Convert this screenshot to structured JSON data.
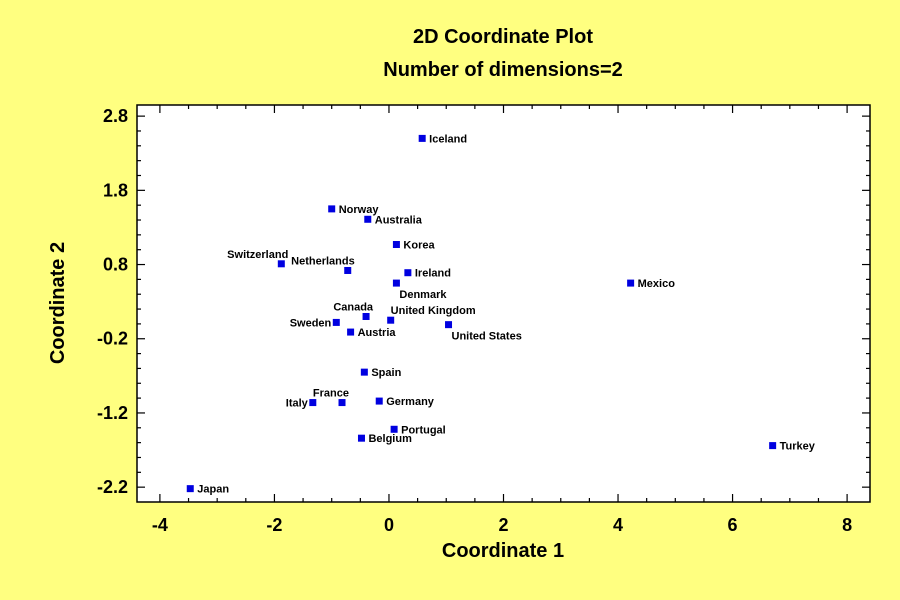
{
  "chart_data": {
    "type": "scatter",
    "title": "2D Coordinate Plot",
    "subtitle": "Number of dimensions=2",
    "xlabel": "Coordinate 1",
    "ylabel": "Coordinate 2",
    "xlim": [
      -4.4,
      8.4
    ],
    "ylim": [
      -2.4,
      2.95
    ],
    "xticks": [
      -4,
      -2,
      0,
      2,
      4,
      6,
      8
    ],
    "yticks": [
      2.8,
      1.8,
      0.8,
      -0.2,
      -1.2,
      -2.2
    ],
    "xtick_labels": [
      "-4",
      "-2",
      "0",
      "2",
      "4",
      "6",
      "8"
    ],
    "ytick_labels": [
      "2.8",
      "1.8",
      "0.8",
      "-0.2",
      "-1.2",
      "-2.2"
    ],
    "grid": false,
    "marker_color": "#0000E0",
    "plot_background": "#FFFFFF",
    "page_background": "#FFFF80",
    "points": [
      {
        "label": "Iceland",
        "x": 0.58,
        "y": 2.5,
        "pos": "right"
      },
      {
        "label": "Norway",
        "x": -1.0,
        "y": 1.55,
        "pos": "right"
      },
      {
        "label": "Australia",
        "x": -0.37,
        "y": 1.41,
        "pos": "right"
      },
      {
        "label": "Korea",
        "x": 0.13,
        "y": 1.07,
        "pos": "right"
      },
      {
        "label": "Switzerland",
        "x": -1.88,
        "y": 0.81,
        "pos": "upleft"
      },
      {
        "label": "Netherlands",
        "x": -0.72,
        "y": 0.72,
        "pos": "upleft"
      },
      {
        "label": "Ireland",
        "x": 0.33,
        "y": 0.69,
        "pos": "right"
      },
      {
        "label": "Denmark",
        "x": 0.13,
        "y": 0.55,
        "pos": "belowright"
      },
      {
        "label": "Mexico",
        "x": 4.22,
        "y": 0.55,
        "pos": "right"
      },
      {
        "label": "Canada",
        "x": -0.4,
        "y": 0.1,
        "pos": "upleft"
      },
      {
        "label": "United Kingdom",
        "x": 0.03,
        "y": 0.05,
        "pos": "upright"
      },
      {
        "label": "Sweden",
        "x": -0.92,
        "y": 0.02,
        "pos": "left"
      },
      {
        "label": "United States",
        "x": 1.04,
        "y": -0.01,
        "pos": "belowright"
      },
      {
        "label": "Austria",
        "x": -0.67,
        "y": -0.11,
        "pos": "right"
      },
      {
        "label": "Spain",
        "x": -0.43,
        "y": -0.65,
        "pos": "right"
      },
      {
        "label": "France",
        "x": -0.82,
        "y": -1.06,
        "pos": "upleft"
      },
      {
        "label": "Italy",
        "x": -1.33,
        "y": -1.06,
        "pos": "left"
      },
      {
        "label": "Germany",
        "x": -0.17,
        "y": -1.04,
        "pos": "right"
      },
      {
        "label": "Portugal",
        "x": 0.09,
        "y": -1.42,
        "pos": "right"
      },
      {
        "label": "Belgium",
        "x": -0.48,
        "y": -1.54,
        "pos": "right"
      },
      {
        "label": "Turkey",
        "x": 6.7,
        "y": -1.64,
        "pos": "right"
      },
      {
        "label": "Japan",
        "x": -3.47,
        "y": -2.22,
        "pos": "right"
      }
    ]
  }
}
